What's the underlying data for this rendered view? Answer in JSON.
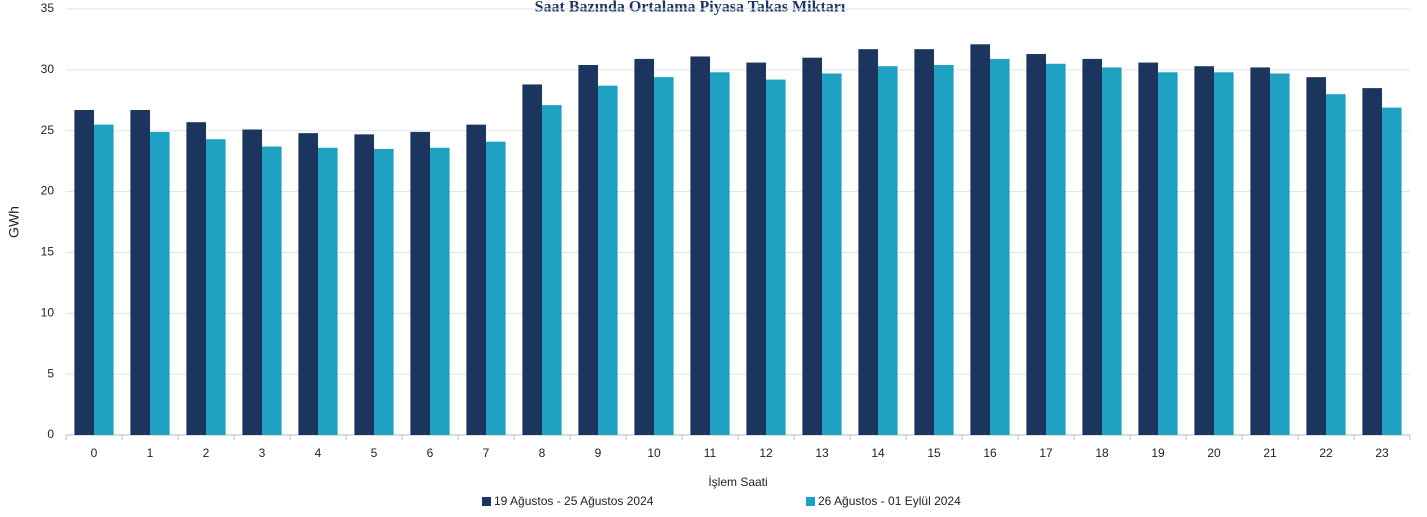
{
  "chart_data": {
    "type": "bar",
    "title": "Saat Bazında Ortalama Piyasa Takas Miktarı",
    "x_label": "İşlem Saati",
    "y_label": "GWh",
    "categories": [
      "0",
      "1",
      "2",
      "3",
      "4",
      "5",
      "6",
      "7",
      "8",
      "9",
      "10",
      "11",
      "12",
      "13",
      "14",
      "15",
      "16",
      "17",
      "18",
      "19",
      "20",
      "21",
      "22",
      "23"
    ],
    "series": [
      {
        "name": "19 Ağustos - 25 Ağustos 2024",
        "color": "#1c355e",
        "values": [
          26.7,
          26.7,
          25.7,
          25.1,
          24.8,
          24.7,
          24.9,
          25.5,
          28.8,
          30.4,
          30.9,
          31.1,
          30.6,
          31.0,
          31.7,
          31.7,
          32.1,
          31.3,
          30.9,
          30.6,
          30.3,
          30.2,
          29.4,
          28.5
        ]
      },
      {
        "name": "26 Ağustos - 01 Eylül 2024",
        "color": "#1fa1c2",
        "values": [
          25.5,
          24.9,
          24.3,
          23.7,
          23.6,
          23.5,
          23.6,
          24.1,
          27.1,
          28.7,
          29.4,
          29.8,
          29.2,
          29.7,
          30.3,
          30.4,
          30.9,
          30.5,
          30.2,
          29.8,
          29.8,
          29.7,
          28.0,
          26.9
        ]
      }
    ],
    "ylim": [
      0,
      35
    ],
    "yticks": [
      0,
      5,
      10,
      15,
      20,
      25,
      30,
      35
    ],
    "grid": true
  }
}
